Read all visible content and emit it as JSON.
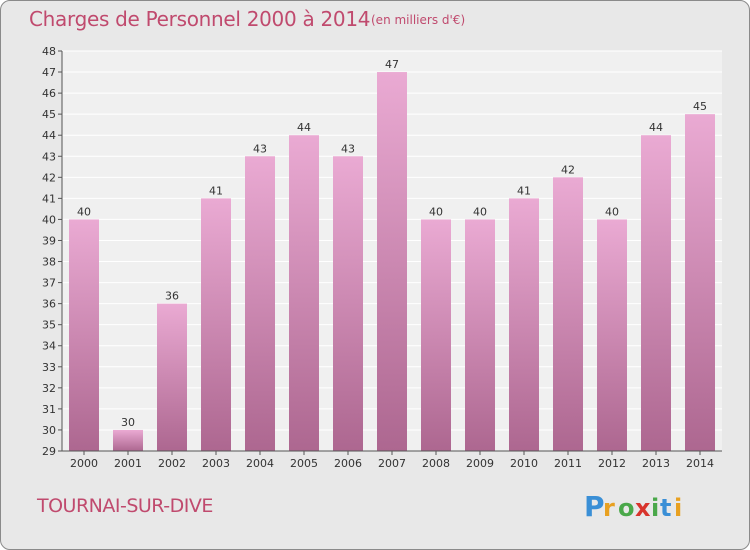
{
  "title": "Charges de Personnel 2000 à 2014",
  "subtitle": "(en milliers d'€)",
  "city": "TOURNAI-SUR-DIVE",
  "brand": "Proxiti",
  "colors": {
    "background": "#e8e8e8",
    "plot_background": "#f2f2f2",
    "bar_top": "#e9a9d1",
    "bar_bottom": "#b06a91",
    "title": "#c04a6e",
    "grid": "#ffffff"
  },
  "chart_data": {
    "type": "bar",
    "title": "Charges de Personnel 2000 à 2014",
    "categories": [
      "2000",
      "2001",
      "2002",
      "2003",
      "2004",
      "2005",
      "2006",
      "2007",
      "2008",
      "2009",
      "2010",
      "2011",
      "2012",
      "2013",
      "2014"
    ],
    "values": [
      40,
      30,
      36,
      41,
      43,
      44,
      43,
      47,
      40,
      40,
      41,
      42,
      40,
      44,
      45
    ],
    "ylim": [
      29,
      48
    ],
    "yticks": [
      29,
      30,
      31,
      32,
      33,
      34,
      35,
      36,
      37,
      38,
      39,
      40,
      41,
      42,
      43,
      44,
      45,
      46,
      47,
      48
    ],
    "grid": true
  }
}
